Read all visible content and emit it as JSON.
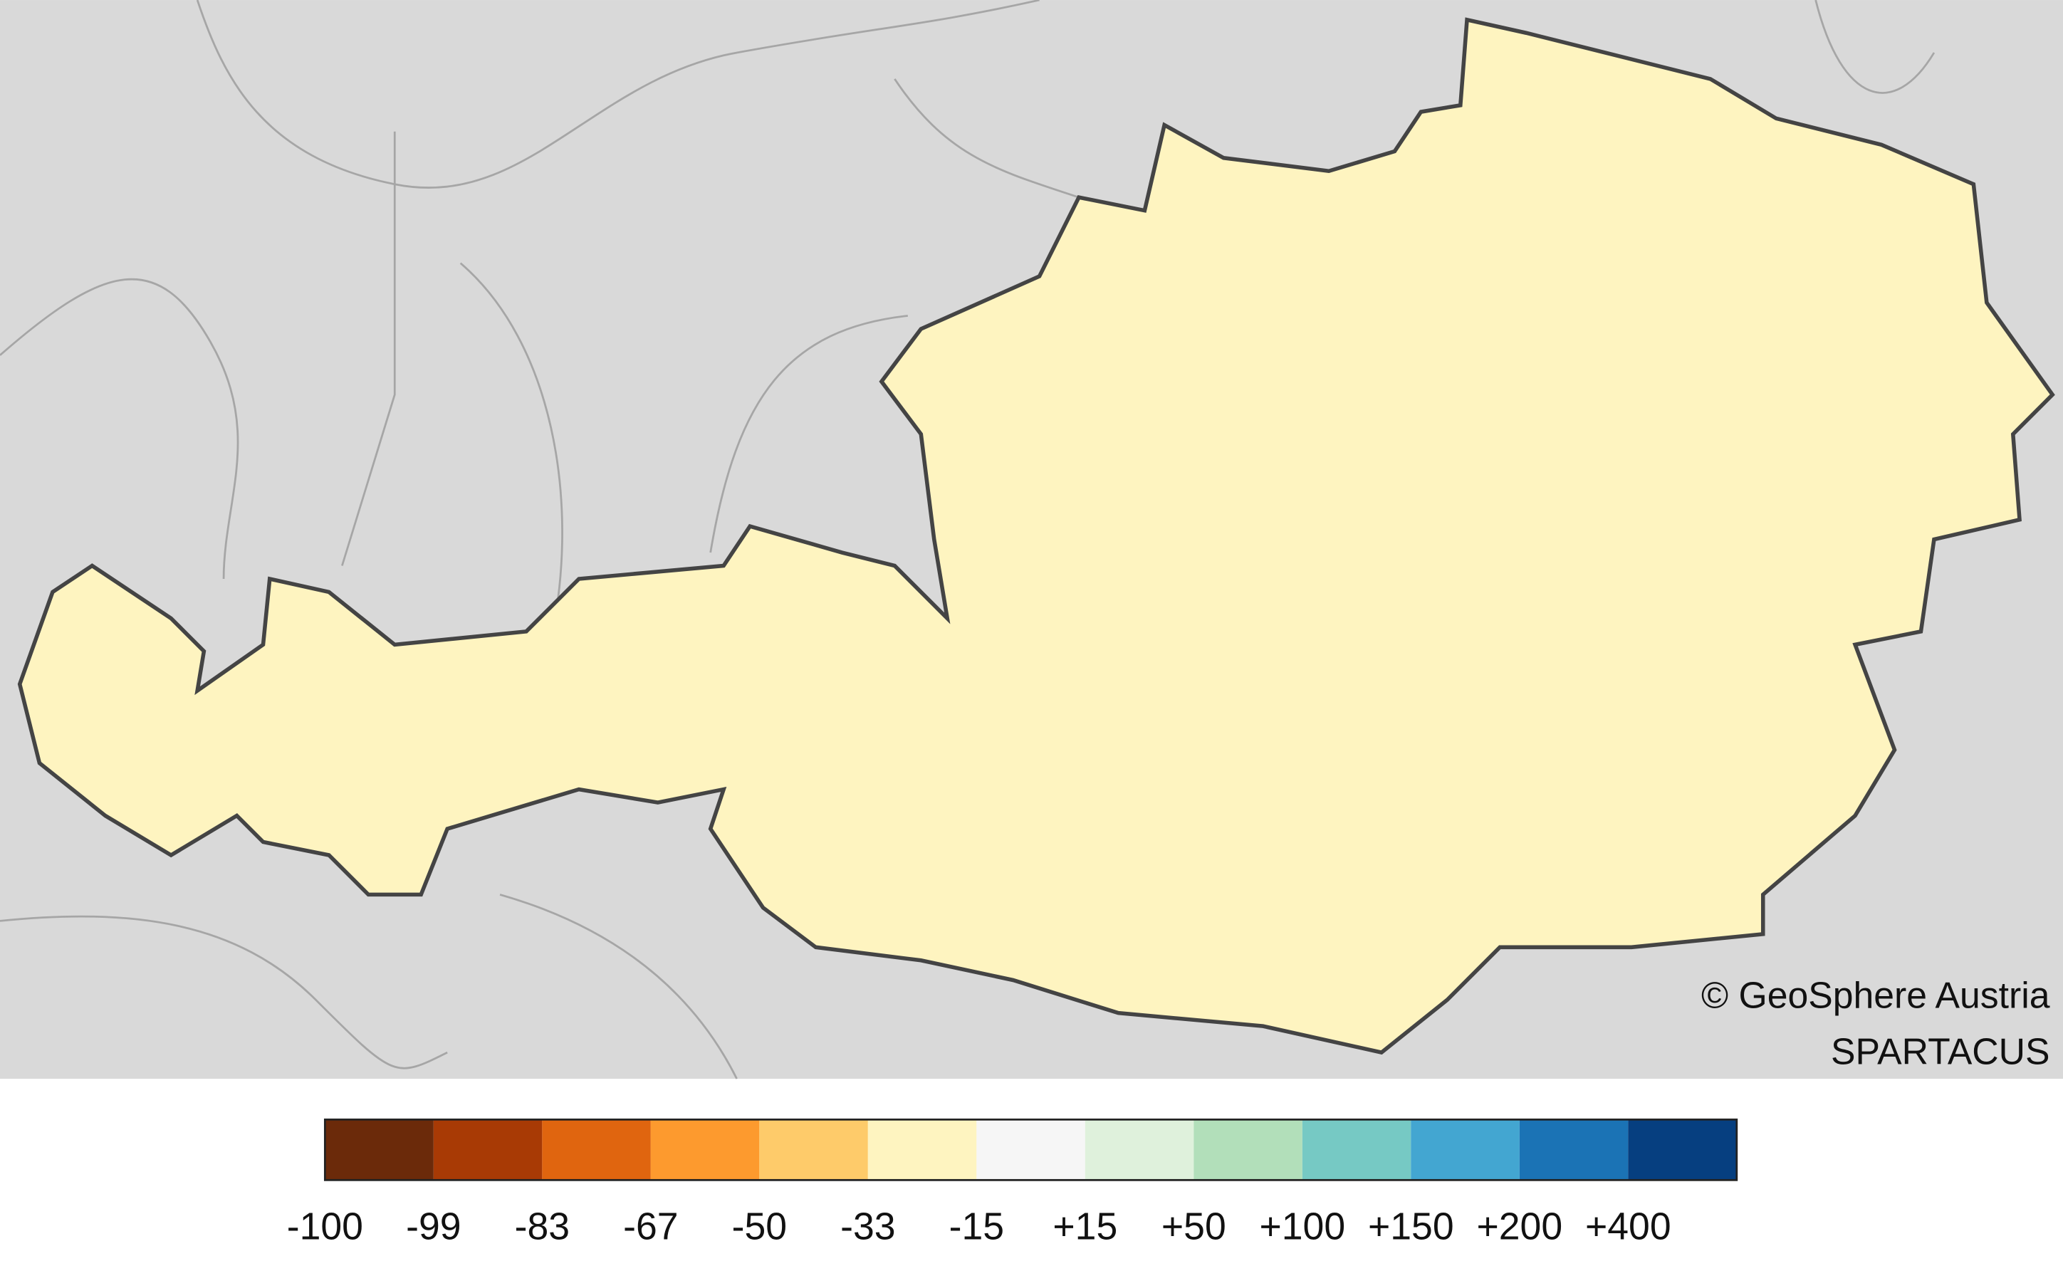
{
  "credits": {
    "copyright": "© GeoSphere Austria",
    "dataset": "SPARTACUS"
  },
  "legend": {
    "colors": [
      "#6b2a0a",
      "#a83a05",
      "#e0650f",
      "#fd9a2e",
      "#fecb6a",
      "#fef4c0",
      "#f6f6f6",
      "#dff1dc",
      "#b2dfba",
      "#76c9c4",
      "#43a6d1",
      "#1b73b5",
      "#063f80"
    ],
    "labels": [
      "-100",
      "-99",
      "-83",
      "-67",
      "-50",
      "-33",
      "-15",
      "+15",
      "+50",
      "+100",
      "+150",
      "+200",
      "+400"
    ]
  }
}
